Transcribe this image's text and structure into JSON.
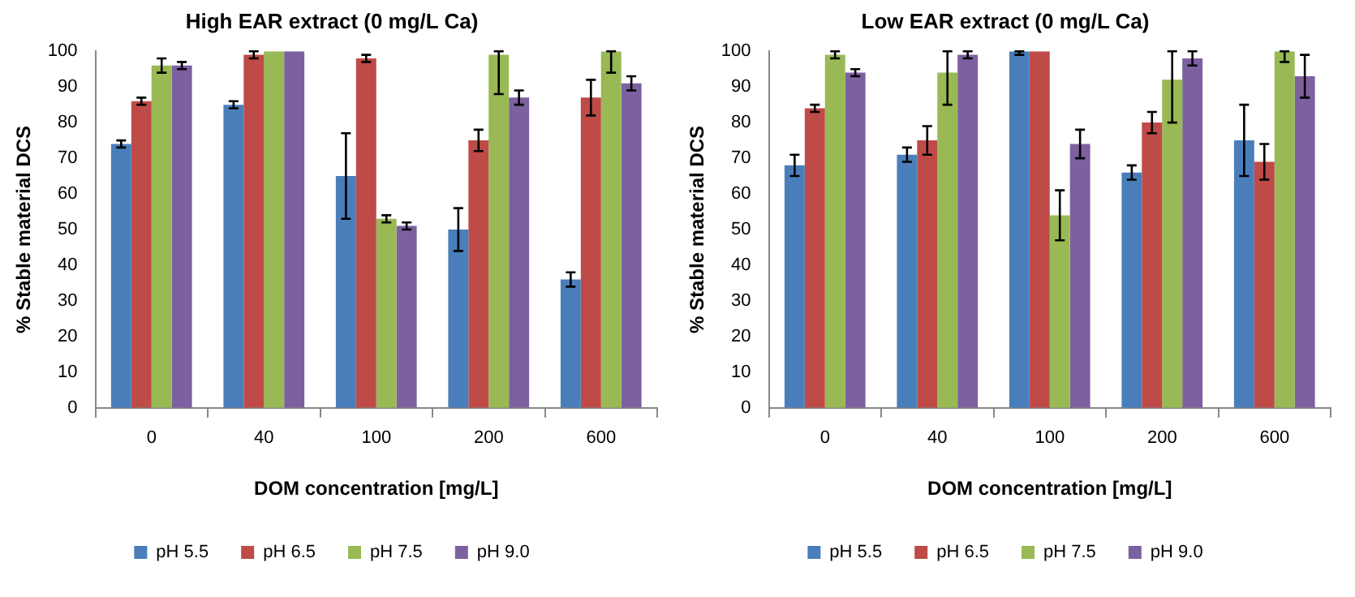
{
  "chart_data": [
    {
      "type": "bar",
      "title": "High EAR extract (0 mg/L Ca)",
      "xlabel": "DOM concentration [mg/L]",
      "ylabel": "% Stable material DCS",
      "categories": [
        "0",
        "40",
        "100",
        "200",
        "600"
      ],
      "ylim": [
        0,
        100
      ],
      "yticks": [
        0,
        10,
        20,
        30,
        40,
        50,
        60,
        70,
        80,
        90,
        100
      ],
      "grid": false,
      "legend": "bottom",
      "series": [
        {
          "name": "pH 5.5",
          "color": "#4a7ebb",
          "values": [
            74,
            85,
            65,
            50,
            36
          ],
          "errors": [
            [
              73,
              75
            ],
            [
              84,
              86
            ],
            [
              53,
              77
            ],
            [
              44,
              56
            ],
            [
              34,
              38
            ]
          ]
        },
        {
          "name": "pH 6.5",
          "color": "#be4b48",
          "values": [
            86,
            99,
            98,
            75,
            87
          ],
          "errors": [
            [
              85,
              87
            ],
            [
              98,
              100
            ],
            [
              97,
              99
            ],
            [
              72,
              78
            ],
            [
              82,
              92
            ]
          ]
        },
        {
          "name": "pH 7.5",
          "color": "#98b954",
          "values": [
            96,
            100,
            53,
            99,
            100
          ],
          "errors": [
            [
              94,
              98
            ],
            null,
            [
              52,
              54
            ],
            [
              88,
              100
            ],
            [
              94,
              100
            ]
          ]
        },
        {
          "name": "pH 9.0",
          "color": "#7d60a0",
          "values": [
            96,
            100,
            51,
            87,
            91
          ],
          "errors": [
            [
              95,
              97
            ],
            null,
            [
              50,
              52
            ],
            [
              85,
              89
            ],
            [
              89,
              93
            ]
          ]
        }
      ]
    },
    {
      "type": "bar",
      "title": "Low EAR extract (0 mg/L Ca)",
      "xlabel": "DOM concentration [mg/L]",
      "ylabel": "% Stable material DCS",
      "categories": [
        "0",
        "40",
        "100",
        "200",
        "600"
      ],
      "ylim": [
        0,
        100
      ],
      "yticks": [
        0,
        10,
        20,
        30,
        40,
        50,
        60,
        70,
        80,
        90,
        100
      ],
      "grid": false,
      "legend": "bottom",
      "series": [
        {
          "name": "pH 5.5",
          "color": "#4a7ebb",
          "values": [
            68,
            71,
            100,
            66,
            75
          ],
          "errors": [
            [
              65,
              71
            ],
            [
              69,
              73
            ],
            [
              99,
              100
            ],
            [
              64,
              68
            ],
            [
              65,
              85
            ]
          ]
        },
        {
          "name": "pH 6.5",
          "color": "#be4b48",
          "values": [
            84,
            75,
            100,
            80,
            69
          ],
          "errors": [
            [
              83,
              85
            ],
            [
              71,
              79
            ],
            null,
            [
              77,
              83
            ],
            [
              64,
              74
            ]
          ]
        },
        {
          "name": "pH 7.5",
          "color": "#98b954",
          "values": [
            99,
            94,
            54,
            92,
            100
          ],
          "errors": [
            [
              98,
              100
            ],
            [
              85,
              100
            ],
            [
              47,
              61
            ],
            [
              80,
              100
            ],
            [
              97,
              100
            ]
          ]
        },
        {
          "name": "pH 9.0",
          "color": "#7d60a0",
          "values": [
            94,
            99,
            74,
            98,
            93
          ],
          "errors": [
            [
              93,
              95
            ],
            [
              98,
              100
            ],
            [
              70,
              78
            ],
            [
              96,
              100
            ],
            [
              87,
              99
            ]
          ]
        }
      ]
    }
  ]
}
